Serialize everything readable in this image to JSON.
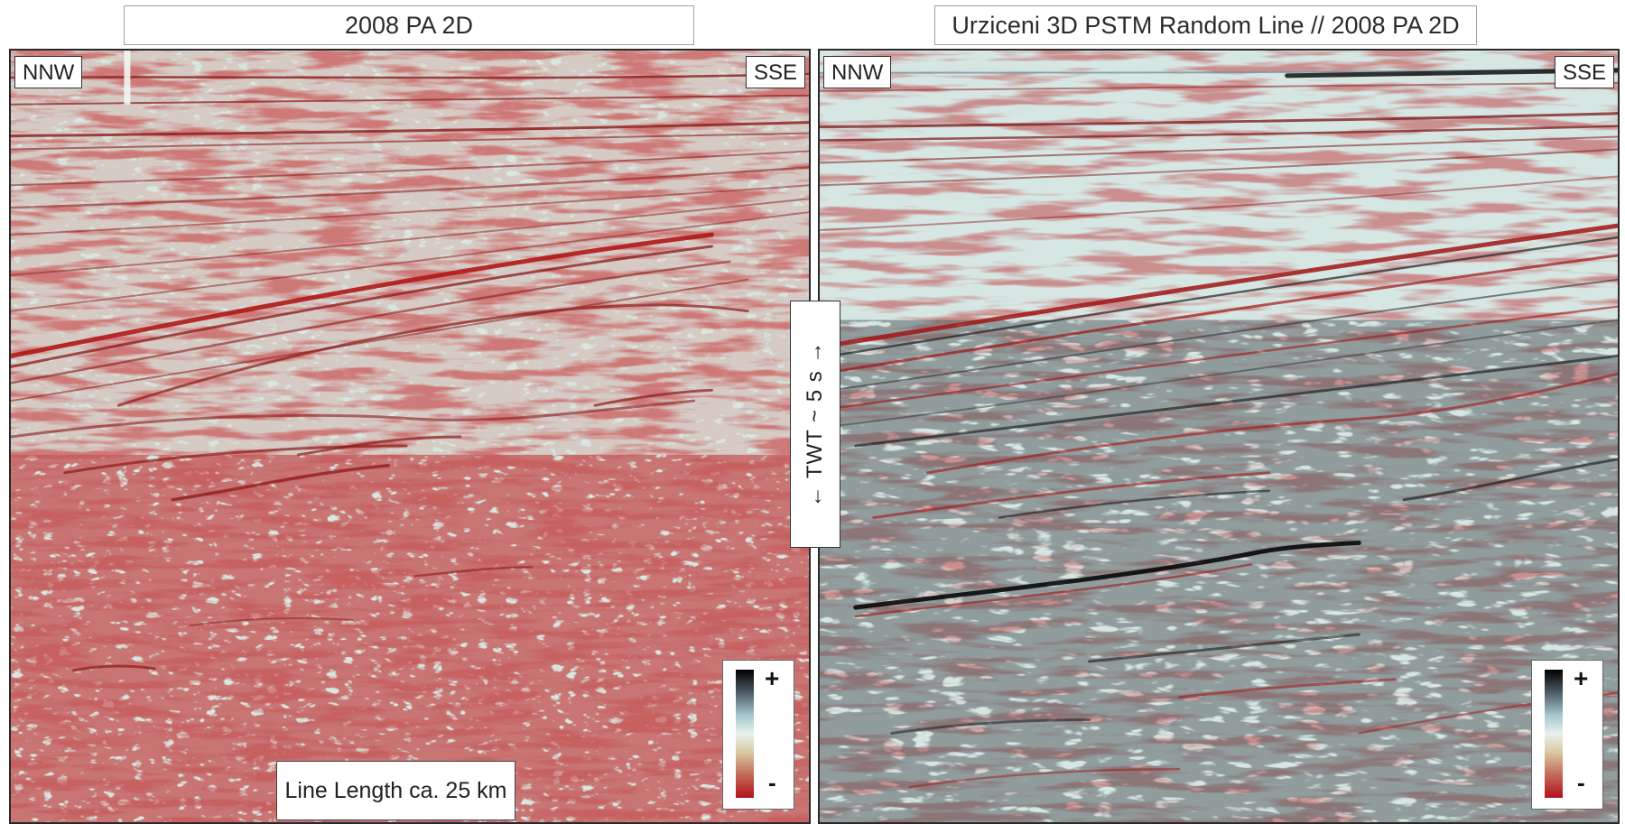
{
  "titles": {
    "left": "2008 PA 2D",
    "right": "Urziceni 3D PSTM Random Line // 2008 PA 2D"
  },
  "orientation": {
    "left_start": "NNW",
    "left_end": "SSE",
    "right_start": "NNW",
    "right_end": "SSE"
  },
  "amplitude_scale": {
    "plus": "+",
    "minus": "-",
    "colors": [
      "#000000",
      "#a8c9cf",
      "#e8f1ed",
      "#d9cba4",
      "#b0121b"
    ]
  },
  "line_length": "Line Length ca. 25 km",
  "twt_label": "← TWT ~ 5 s →"
}
